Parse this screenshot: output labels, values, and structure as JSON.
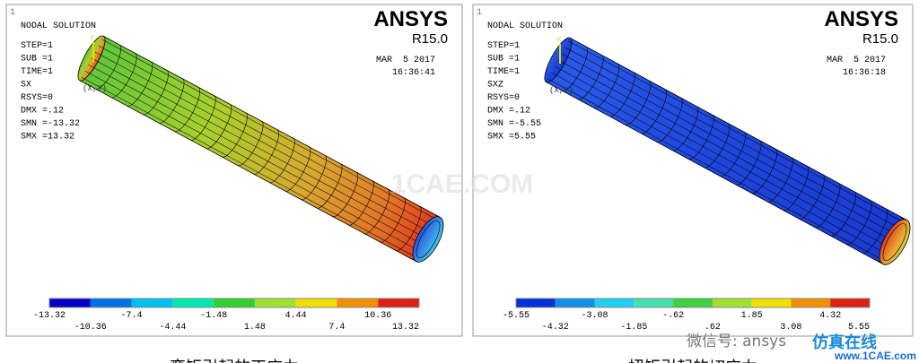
{
  "panels": [
    {
      "index": "1",
      "title": "NODAL SOLUTION",
      "info": [
        "STEP=1",
        "SUB =1",
        "TIME=1",
        "SX",
        "RSYS=0",
        "DMX =.12",
        "SMN =-13.32",
        "SMX =13.32"
      ],
      "brand": "ANSYS",
      "version": "R15.0",
      "date": "MAR  5 2017",
      "time": "16:36:41",
      "axis_label": "Y",
      "axis_note": "(X,Y)",
      "colorbar_labels": [
        "-13.32",
        "-10.36",
        "-7.4",
        "-4.44",
        "-1.48",
        "1.48",
        "4.44",
        "7.4",
        "10.36",
        "13.32"
      ],
      "caption": "弯矩引起的正应力"
    },
    {
      "index": "1",
      "title": "NODAL SOLUTION",
      "info": [
        "STEP=1",
        "SUB =1",
        "TIME=1",
        "SXZ",
        "RSYS=0",
        "DMX =.12",
        "SMN =-5.55",
        "SMX =5.55"
      ],
      "brand": "ANSYS",
      "version": "R15.0",
      "date": "MAR  5 2017",
      "time": "16:36:18",
      "axis_label": "Y",
      "axis_note": "(X,Y)",
      "colorbar_labels": [
        "-5.55",
        "-4.32",
        "-3.08",
        "-1.85",
        "-.62",
        ".62",
        "1.85",
        "3.08",
        "4.32",
        "5.55"
      ],
      "caption": "扭矩引起的切应力"
    }
  ],
  "watermark": "1CAE.COM",
  "footer": {
    "wechat": "微信号: ansys",
    "site_name": "仿真在线",
    "site_url": "www.1CAE.com"
  }
}
